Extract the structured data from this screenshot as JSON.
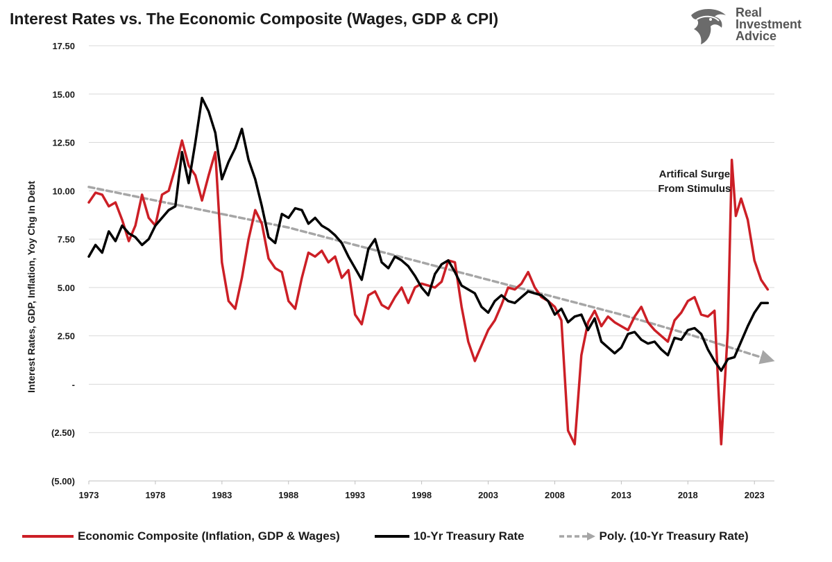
{
  "title": "Interest Rates vs. The Economic Composite (Wages, GDP & CPI)",
  "logo": {
    "line1": "Real",
    "line2": "Investment",
    "line3": "Advice",
    "icon": "eagle-head-icon"
  },
  "colors": {
    "composite": "#cc1f26",
    "treasury": "#000000",
    "trend": "#a6a6a6",
    "grid": "#d9d9d9"
  },
  "chart_data": {
    "type": "line",
    "title": "Interest Rates vs. The Economic Composite (Wages, GDP & CPI)",
    "ylabel": "Interest Rates, GDP, Inflation, Yoy Chg In Debt",
    "xlabel": "",
    "xlim": [
      1973,
      2024.5
    ],
    "ylim": [
      -5,
      17.5
    ],
    "x_ticks": [
      1973,
      1978,
      1983,
      1988,
      1993,
      1998,
      2003,
      2008,
      2013,
      2018,
      2023
    ],
    "x_tick_labels": [
      "1973",
      "1978",
      "1983",
      "1988",
      "1993",
      "1998",
      "2003",
      "2008",
      "2013",
      "2018",
      "2023"
    ],
    "y_ticks": [
      -5,
      -2.5,
      0,
      2.5,
      5,
      7.5,
      10,
      12.5,
      15,
      17.5
    ],
    "y_tick_labels": [
      "(5.00)",
      "(2.50)",
      "-",
      "2.50",
      "5.00",
      "7.50",
      "10.00",
      "12.50",
      "15.00",
      "17.50"
    ],
    "grid": "horizontal",
    "legend_position": "bottom",
    "annotation": {
      "line1": "Artifical Surge",
      "line2": "From Stimulus",
      "x": 2018.5,
      "y": 10.7
    },
    "series": [
      {
        "name": "Economic Composite (Inflation, GDP & Wages)",
        "points": [
          [
            1973.0,
            9.4
          ],
          [
            1973.5,
            9.9
          ],
          [
            1974.0,
            9.8
          ],
          [
            1974.5,
            9.2
          ],
          [
            1975.0,
            9.4
          ],
          [
            1975.5,
            8.5
          ],
          [
            1976.0,
            7.4
          ],
          [
            1976.5,
            8.2
          ],
          [
            1977.0,
            9.8
          ],
          [
            1977.5,
            8.6
          ],
          [
            1978.0,
            8.2
          ],
          [
            1978.5,
            9.8
          ],
          [
            1979.0,
            10.0
          ],
          [
            1979.5,
            11.2
          ],
          [
            1980.0,
            12.6
          ],
          [
            1980.5,
            11.3
          ],
          [
            1981.0,
            10.8
          ],
          [
            1981.5,
            9.5
          ],
          [
            1982.0,
            10.8
          ],
          [
            1982.5,
            12.0
          ],
          [
            1983.0,
            6.3
          ],
          [
            1983.5,
            4.3
          ],
          [
            1984.0,
            3.9
          ],
          [
            1984.5,
            5.5
          ],
          [
            1985.0,
            7.5
          ],
          [
            1985.5,
            9.0
          ],
          [
            1986.0,
            8.3
          ],
          [
            1986.5,
            6.5
          ],
          [
            1987.0,
            6.0
          ],
          [
            1987.5,
            5.8
          ],
          [
            1988.0,
            4.3
          ],
          [
            1988.5,
            3.9
          ],
          [
            1989.0,
            5.5
          ],
          [
            1989.5,
            6.8
          ],
          [
            1990.0,
            6.6
          ],
          [
            1990.5,
            6.9
          ],
          [
            1991.0,
            6.3
          ],
          [
            1991.5,
            6.6
          ],
          [
            1992.0,
            5.5
          ],
          [
            1992.5,
            5.9
          ],
          [
            1993.0,
            3.6
          ],
          [
            1993.5,
            3.1
          ],
          [
            1994.0,
            4.6
          ],
          [
            1994.5,
            4.8
          ],
          [
            1995.0,
            4.1
          ],
          [
            1995.5,
            3.9
          ],
          [
            1996.0,
            4.5
          ],
          [
            1996.5,
            5.0
          ],
          [
            1997.0,
            4.2
          ],
          [
            1997.5,
            5.0
          ],
          [
            1998.0,
            5.2
          ],
          [
            1998.5,
            5.1
          ],
          [
            1999.0,
            5.0
          ],
          [
            1999.5,
            5.3
          ],
          [
            2000.0,
            6.4
          ],
          [
            2000.5,
            6.3
          ],
          [
            2001.0,
            4.0
          ],
          [
            2001.5,
            2.2
          ],
          [
            2002.0,
            1.2
          ],
          [
            2002.5,
            2.0
          ],
          [
            2003.0,
            2.8
          ],
          [
            2003.5,
            3.3
          ],
          [
            2004.0,
            4.1
          ],
          [
            2004.5,
            5.0
          ],
          [
            2005.0,
            4.9
          ],
          [
            2005.5,
            5.2
          ],
          [
            2006.0,
            5.8
          ],
          [
            2006.5,
            5.0
          ],
          [
            2007.0,
            4.5
          ],
          [
            2007.5,
            4.3
          ],
          [
            2008.0,
            4.0
          ],
          [
            2008.5,
            3.3
          ],
          [
            2009.0,
            -2.4
          ],
          [
            2009.5,
            -3.1
          ],
          [
            2010.0,
            1.5
          ],
          [
            2010.5,
            3.2
          ],
          [
            2011.0,
            3.8
          ],
          [
            2011.5,
            3.0
          ],
          [
            2012.0,
            3.5
          ],
          [
            2012.5,
            3.2
          ],
          [
            2013.0,
            3.0
          ],
          [
            2013.5,
            2.8
          ],
          [
            2014.0,
            3.5
          ],
          [
            2014.5,
            4.0
          ],
          [
            2015.0,
            3.2
          ],
          [
            2015.5,
            2.8
          ],
          [
            2016.0,
            2.5
          ],
          [
            2016.5,
            2.2
          ],
          [
            2017.0,
            3.3
          ],
          [
            2017.5,
            3.7
          ],
          [
            2018.0,
            4.3
          ],
          [
            2018.5,
            4.5
          ],
          [
            2019.0,
            3.6
          ],
          [
            2019.5,
            3.5
          ],
          [
            2020.0,
            3.8
          ],
          [
            2020.5,
            -3.1
          ],
          [
            2021.0,
            2.8
          ],
          [
            2021.3,
            11.6
          ],
          [
            2021.6,
            8.7
          ],
          [
            2022.0,
            9.6
          ],
          [
            2022.5,
            8.5
          ],
          [
            2023.0,
            6.4
          ],
          [
            2023.5,
            5.4
          ],
          [
            2024.0,
            4.9
          ]
        ]
      },
      {
        "name": "10-Yr Treasury Rate",
        "points": [
          [
            1973.0,
            6.6
          ],
          [
            1973.5,
            7.2
          ],
          [
            1974.0,
            6.8
          ],
          [
            1974.5,
            7.9
          ],
          [
            1975.0,
            7.4
          ],
          [
            1975.5,
            8.2
          ],
          [
            1976.0,
            7.8
          ],
          [
            1976.5,
            7.6
          ],
          [
            1977.0,
            7.2
          ],
          [
            1977.5,
            7.5
          ],
          [
            1978.0,
            8.2
          ],
          [
            1978.5,
            8.6
          ],
          [
            1979.0,
            9.0
          ],
          [
            1979.5,
            9.2
          ],
          [
            1980.0,
            12.0
          ],
          [
            1980.5,
            10.4
          ],
          [
            1981.0,
            12.5
          ],
          [
            1981.5,
            14.8
          ],
          [
            1982.0,
            14.1
          ],
          [
            1982.5,
            13.0
          ],
          [
            1983.0,
            10.6
          ],
          [
            1983.5,
            11.5
          ],
          [
            1984.0,
            12.2
          ],
          [
            1984.5,
            13.2
          ],
          [
            1985.0,
            11.6
          ],
          [
            1985.5,
            10.6
          ],
          [
            1986.0,
            9.2
          ],
          [
            1986.5,
            7.6
          ],
          [
            1987.0,
            7.3
          ],
          [
            1987.5,
            8.8
          ],
          [
            1988.0,
            8.6
          ],
          [
            1988.5,
            9.1
          ],
          [
            1989.0,
            9.0
          ],
          [
            1989.5,
            8.3
          ],
          [
            1990.0,
            8.6
          ],
          [
            1990.5,
            8.2
          ],
          [
            1991.0,
            8.0
          ],
          [
            1991.5,
            7.7
          ],
          [
            1992.0,
            7.3
          ],
          [
            1992.5,
            6.6
          ],
          [
            1993.0,
            6.0
          ],
          [
            1993.5,
            5.4
          ],
          [
            1994.0,
            7.0
          ],
          [
            1994.5,
            7.5
          ],
          [
            1995.0,
            6.3
          ],
          [
            1995.5,
            6.0
          ],
          [
            1996.0,
            6.6
          ],
          [
            1996.5,
            6.4
          ],
          [
            1997.0,
            6.1
          ],
          [
            1997.5,
            5.6
          ],
          [
            1998.0,
            5.0
          ],
          [
            1998.5,
            4.6
          ],
          [
            1999.0,
            5.7
          ],
          [
            1999.5,
            6.2
          ],
          [
            2000.0,
            6.4
          ],
          [
            2000.5,
            5.8
          ],
          [
            2001.0,
            5.1
          ],
          [
            2001.5,
            4.9
          ],
          [
            2002.0,
            4.7
          ],
          [
            2002.5,
            4.0
          ],
          [
            2003.0,
            3.7
          ],
          [
            2003.5,
            4.3
          ],
          [
            2004.0,
            4.6
          ],
          [
            2004.5,
            4.3
          ],
          [
            2005.0,
            4.2
          ],
          [
            2005.5,
            4.5
          ],
          [
            2006.0,
            4.8
          ],
          [
            2006.5,
            4.7
          ],
          [
            2007.0,
            4.6
          ],
          [
            2007.5,
            4.3
          ],
          [
            2008.0,
            3.6
          ],
          [
            2008.5,
            3.9
          ],
          [
            2009.0,
            3.2
          ],
          [
            2009.5,
            3.5
          ],
          [
            2010.0,
            3.6
          ],
          [
            2010.5,
            2.8
          ],
          [
            2011.0,
            3.4
          ],
          [
            2011.5,
            2.2
          ],
          [
            2012.0,
            1.9
          ],
          [
            2012.5,
            1.6
          ],
          [
            2013.0,
            1.9
          ],
          [
            2013.5,
            2.6
          ],
          [
            2014.0,
            2.7
          ],
          [
            2014.5,
            2.3
          ],
          [
            2015.0,
            2.1
          ],
          [
            2015.5,
            2.2
          ],
          [
            2016.0,
            1.8
          ],
          [
            2016.5,
            1.5
          ],
          [
            2017.0,
            2.4
          ],
          [
            2017.5,
            2.3
          ],
          [
            2018.0,
            2.8
          ],
          [
            2018.5,
            2.9
          ],
          [
            2019.0,
            2.6
          ],
          [
            2019.5,
            1.8
          ],
          [
            2020.0,
            1.2
          ],
          [
            2020.5,
            0.7
          ],
          [
            2021.0,
            1.3
          ],
          [
            2021.5,
            1.4
          ],
          [
            2022.0,
            2.2
          ],
          [
            2022.5,
            3.0
          ],
          [
            2023.0,
            3.7
          ],
          [
            2023.5,
            4.2
          ],
          [
            2024.0,
            4.2
          ]
        ]
      },
      {
        "name": "Poly. (10-Yr Treasury Rate)",
        "style": "dashed-arrow",
        "points": [
          [
            1973.0,
            10.2
          ],
          [
            1978.0,
            9.5
          ],
          [
            1983.0,
            8.8
          ],
          [
            1988.0,
            8.1
          ],
          [
            1993.0,
            7.2
          ],
          [
            1998.0,
            6.3
          ],
          [
            2003.0,
            5.4
          ],
          [
            2008.0,
            4.5
          ],
          [
            2013.0,
            3.6
          ],
          [
            2018.0,
            2.6
          ],
          [
            2023.0,
            1.5
          ],
          [
            2024.0,
            1.3
          ]
        ]
      }
    ]
  }
}
